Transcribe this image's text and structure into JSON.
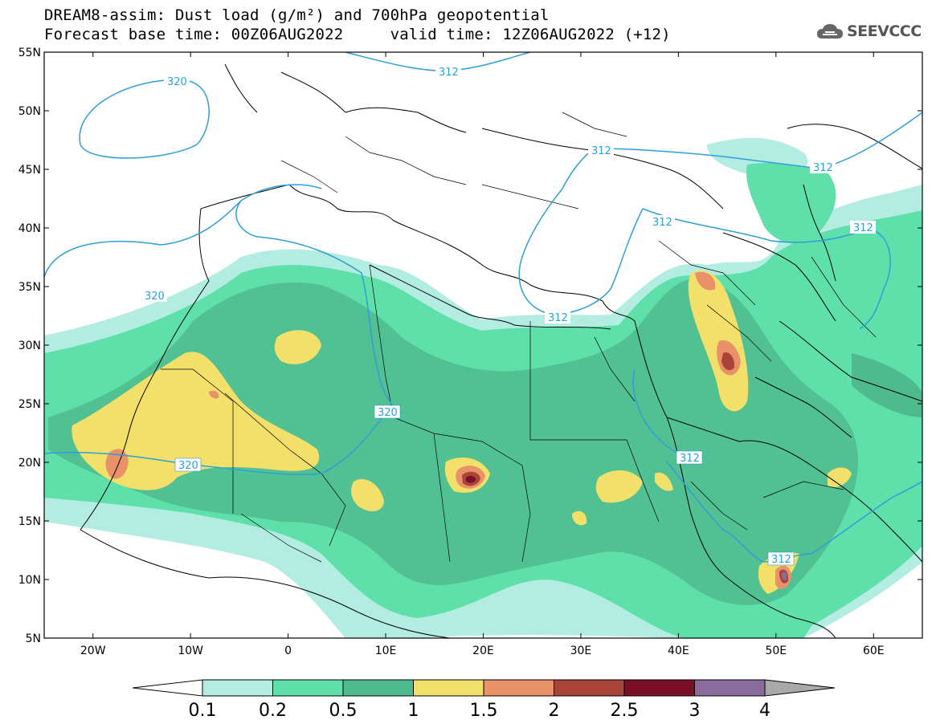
{
  "title": {
    "line1": "DREAM8-assim: Dust load (g/m²) and 700hPa geopotential",
    "line2_left": "Forecast base time: 00Z06AUG2022",
    "line2_right": "valid time: 12Z06AUG2022 (+12)"
  },
  "logo": {
    "text": "SEEVCCC",
    "icon": "cloud-icon"
  },
  "map": {
    "lon_range": [
      -25,
      65
    ],
    "lat_range": [
      5,
      55
    ],
    "lat_ticks": [
      "5N",
      "10N",
      "15N",
      "20N",
      "25N",
      "30N",
      "35N",
      "40N",
      "45N",
      "50N",
      "55N"
    ],
    "lon_ticks": [
      "20W",
      "10W",
      "0",
      "10E",
      "20E",
      "30E",
      "40E",
      "50E",
      "60E"
    ],
    "contour_color": "#2f9fd8",
    "contour_labels": [
      "320",
      "312",
      "312",
      "312",
      "312",
      "320",
      "312",
      "320",
      "312",
      "312"
    ]
  },
  "colorbar": {
    "labels": [
      "0.1",
      "0.2",
      "0.5",
      "1",
      "1.5",
      "2",
      "2.5",
      "3",
      "4"
    ],
    "colors": [
      "#b3ede2",
      "#5fe0ab",
      "#4fba8e",
      "#f2e06a",
      "#e9926a",
      "#a84438",
      "#7a0f2a",
      "#8b6a9c",
      "#a9a9a9"
    ]
  }
}
